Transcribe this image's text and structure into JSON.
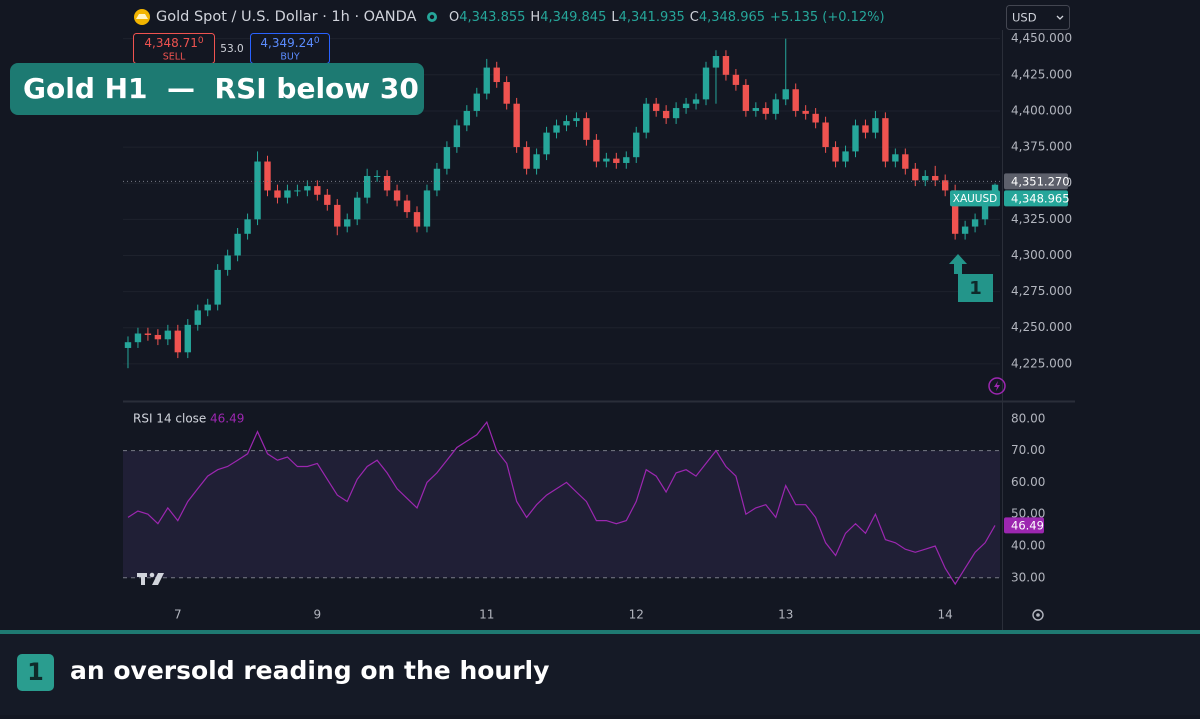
{
  "headline": "Gold H1  —  RSI below 30",
  "toolbar": {
    "currency": "USD"
  },
  "trade": {
    "sell_price": "4,348.71",
    "sell_sup": "0",
    "sell": "SELL",
    "spread": "53.0",
    "buy_price": "4,349.24",
    "buy_sup": "0",
    "buy": "BUY"
  },
  "chart_data": [
    {
      "type": "candlestick",
      "title": "Gold Spot / U.S. Dollar · 1h · OANDA",
      "ohlc_keys": [
        "O",
        "H",
        "L",
        "C"
      ],
      "ohlc_labels": [
        "4,343.855",
        "4,349.845",
        "4,341.935",
        "4,348.965"
      ],
      "change_label": "+5.135 (+0.12%)",
      "symbol": "XAUUSD",
      "ref_price": {
        "value": 4351.27,
        "label": "4,351.270"
      },
      "up_color": "#26a69a",
      "down_color": "#ef5350",
      "ylim": [
        4200,
        4456
      ],
      "yticks": [
        {
          "value": 4225,
          "label": "4,225.000"
        },
        {
          "value": 4250,
          "label": "4,250.000"
        },
        {
          "value": 4275,
          "label": "4,275.000"
        },
        {
          "value": 4300,
          "label": "4,300.000"
        },
        {
          "value": 4325,
          "label": "4,325.000"
        },
        {
          "value": 4350,
          "label": "4,350.000"
        },
        {
          "value": 4375,
          "label": "4,375.000"
        },
        {
          "value": 4400,
          "label": "4,400.000"
        },
        {
          "value": 4425,
          "label": "4,425.000"
        },
        {
          "value": 4450,
          "label": "4,450.000"
        }
      ],
      "grid": true,
      "open": [
        4236,
        4240,
        4246,
        4245,
        4242,
        4248,
        4233,
        4252,
        4262,
        4266,
        4290,
        4300,
        4315,
        4325,
        4365,
        4345,
        4340,
        4345,
        4345,
        4348,
        4342,
        4335,
        4320,
        4325,
        4340,
        4355,
        4355,
        4345,
        4338,
        4330,
        4320,
        4345,
        4360,
        4375,
        4390,
        4400,
        4412,
        4430,
        4420,
        4405,
        4375,
        4360,
        4370,
        4385,
        4390,
        4393,
        4395,
        4380,
        4365,
        4367,
        4364,
        4368,
        4385,
        4405,
        4400,
        4395,
        4402,
        4405,
        4408,
        4430,
        4438,
        4425,
        4418,
        4400,
        4402,
        4398,
        4408,
        4415,
        4400,
        4398,
        4392,
        4375,
        4365,
        4372,
        4390,
        4385,
        4395,
        4365,
        4370,
        4360,
        4352,
        4355,
        4352,
        4345,
        4315,
        4320,
        4325,
        4343.855
      ],
      "high": [
        4244,
        4250,
        4250,
        4249,
        4252,
        4252,
        4256,
        4266,
        4270,
        4294,
        4304,
        4319,
        4329,
        4372,
        4369,
        4349,
        4349,
        4349,
        4352,
        4352,
        4346,
        4339,
        4329,
        4344,
        4360,
        4359,
        4359,
        4349,
        4342,
        4334,
        4349,
        4364,
        4379,
        4394,
        4404,
        4416,
        4436,
        4434,
        4424,
        4409,
        4379,
        4374,
        4389,
        4394,
        4397,
        4399,
        4399,
        4384,
        4371,
        4371,
        4372,
        4389,
        4409,
        4409,
        4404,
        4406,
        4409,
        4412,
        4434,
        4442,
        4442,
        4429,
        4422,
        4406,
        4406,
        4412,
        4450,
        4419,
        4404,
        4402,
        4396,
        4379,
        4376,
        4394,
        4394,
        4400,
        4399,
        4374,
        4374,
        4364,
        4359,
        4362,
        4356,
        4349,
        4324,
        4329,
        4342,
        4349.845
      ],
      "low": [
        4222,
        4236,
        4241,
        4238,
        4238,
        4229,
        4229,
        4248,
        4258,
        4262,
        4286,
        4296,
        4311,
        4321,
        4341,
        4336,
        4336,
        4341,
        4341,
        4338,
        4331,
        4314,
        4316,
        4321,
        4336,
        4351,
        4341,
        4334,
        4326,
        4316,
        4316,
        4341,
        4356,
        4371,
        4386,
        4396,
        4408,
        4416,
        4401,
        4371,
        4356,
        4356,
        4366,
        4381,
        4386,
        4389,
        4376,
        4361,
        4361,
        4360,
        4360,
        4364,
        4381,
        4396,
        4391,
        4391,
        4398,
        4401,
        4404,
        4405,
        4421,
        4414,
        4396,
        4396,
        4394,
        4394,
        4404,
        4396,
        4394,
        4388,
        4371,
        4361,
        4361,
        4368,
        4381,
        4381,
        4361,
        4361,
        4356,
        4348,
        4348,
        4348,
        4341,
        4311,
        4311,
        4316,
        4321,
        4341.935
      ],
      "close": [
        4240,
        4246,
        4245,
        4242,
        4248,
        4233,
        4252,
        4262,
        4266,
        4290,
        4300,
        4315,
        4325,
        4365,
        4345,
        4340,
        4345,
        4345,
        4348,
        4342,
        4335,
        4320,
        4325,
        4340,
        4355,
        4355,
        4345,
        4338,
        4330,
        4320,
        4345,
        4360,
        4375,
        4390,
        4400,
        4412,
        4430,
        4420,
        4405,
        4375,
        4360,
        4370,
        4385,
        4390,
        4393,
        4395,
        4380,
        4365,
        4367,
        4364,
        4368,
        4385,
        4405,
        4400,
        4395,
        4402,
        4405,
        4408,
        4430,
        4438,
        4425,
        4418,
        4400,
        4402,
        4398,
        4408,
        4415,
        4400,
        4398,
        4392,
        4375,
        4365,
        4372,
        4390,
        4385,
        4395,
        4365,
        4370,
        4360,
        4352,
        4355,
        4352,
        4345,
        4315,
        4320,
        4325,
        4338,
        4348.965
      ]
    },
    {
      "type": "line",
      "categories": [
        null,
        null,
        null,
        null,
        null,
        "7",
        null,
        null,
        null,
        null,
        null,
        null,
        null,
        null,
        null,
        null,
        null,
        null,
        null,
        "9",
        null,
        null,
        null,
        null,
        null,
        null,
        null,
        null,
        null,
        null,
        null,
        null,
        null,
        null,
        null,
        null,
        "11",
        null,
        null,
        null,
        null,
        null,
        null,
        null,
        null,
        null,
        null,
        null,
        null,
        null,
        null,
        "12",
        null,
        null,
        null,
        null,
        null,
        null,
        null,
        null,
        null,
        null,
        null,
        null,
        null,
        null,
        "13",
        null,
        null,
        null,
        null,
        null,
        null,
        null,
        null,
        null,
        null,
        null,
        null,
        null,
        null,
        null,
        "14",
        null,
        null,
        null,
        null,
        null
      ],
      "series": [
        {
          "name": "RSI 14 close",
          "color": "#9c27b0",
          "values": [
            49,
            51,
            50,
            47,
            52,
            48,
            54,
            58,
            62,
            64,
            65,
            67,
            69,
            76,
            69,
            67,
            68,
            65,
            65,
            66,
            61,
            56,
            54,
            61,
            65,
            67,
            63,
            58,
            55,
            52,
            60,
            63,
            67,
            71,
            73,
            75,
            79,
            70,
            66,
            54,
            49,
            53,
            56,
            58,
            60,
            57,
            54,
            48,
            48,
            47,
            48,
            54,
            64,
            62,
            57,
            63,
            64,
            62,
            66,
            70,
            65,
            62,
            50,
            52,
            53,
            49,
            59,
            53,
            53,
            49,
            41,
            37,
            44,
            47,
            44,
            50,
            42,
            41,
            39,
            38,
            39,
            40,
            33,
            28,
            33,
            38,
            41,
            46.49
          ]
        }
      ],
      "bands": [
        30,
        70
      ],
      "ylim": [
        23,
        85
      ],
      "yticks": [
        {
          "value": 30,
          "label": "30.00"
        },
        {
          "value": 40,
          "label": "40.00"
        },
        {
          "value": 50,
          "label": "50.00"
        },
        {
          "value": 60,
          "label": "60.00"
        },
        {
          "value": 70,
          "label": "70.00"
        },
        {
          "value": 80,
          "label": "80.00"
        }
      ]
    }
  ],
  "annotation": {
    "marker": "1"
  },
  "caption": {
    "marker": "1",
    "text": "an oversold reading on the hourly"
  }
}
